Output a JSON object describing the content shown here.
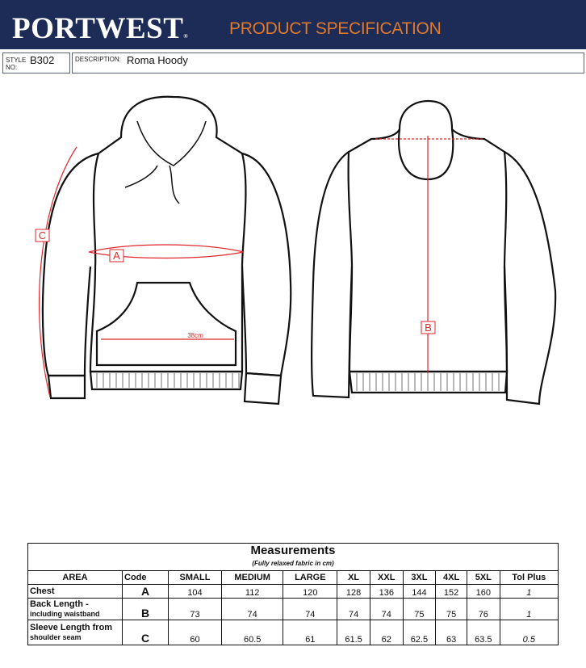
{
  "header": {
    "brand": "PORTWEST",
    "registered": "®",
    "title": "PRODUCT SPECIFICATION"
  },
  "info": {
    "style_label_1": "STYLE",
    "style_label_2": "NO:",
    "style_value": "B302",
    "description_label": "DESCRIPTION:",
    "description_value": "Roma Hoody"
  },
  "drawing": {
    "label_a": "A",
    "label_b": "B",
    "label_c": "C",
    "pocket_measure": "38cm",
    "accent_color": "#e0262b"
  },
  "table": {
    "title": "Measurements",
    "subtitle": "(Fully relaxed fabric in cm)",
    "headers": [
      "AREA",
      "Code",
      "SMALL",
      "MEDIUM",
      "LARGE",
      "XL",
      "XXL",
      "3XL",
      "4XL",
      "5XL",
      "Tol Plus"
    ],
    "rows": [
      {
        "area": "Chest",
        "area2": "",
        "code": "A",
        "values": [
          "104",
          "112",
          "120",
          "128",
          "136",
          "144",
          "152",
          "160"
        ],
        "tol": "1"
      },
      {
        "area": "Back Length -",
        "area2": "including waistband",
        "code": "B",
        "values": [
          "73",
          "74",
          "74",
          "74",
          "74",
          "75",
          "75",
          "76"
        ],
        "tol": "1"
      },
      {
        "area": "Sleeve Length from",
        "area2": "shoulder seam",
        "code": "C",
        "values": [
          "60",
          "60.5",
          "61",
          "61.5",
          "62",
          "62.5",
          "63",
          "63.5"
        ],
        "tol": "0.5"
      }
    ]
  }
}
